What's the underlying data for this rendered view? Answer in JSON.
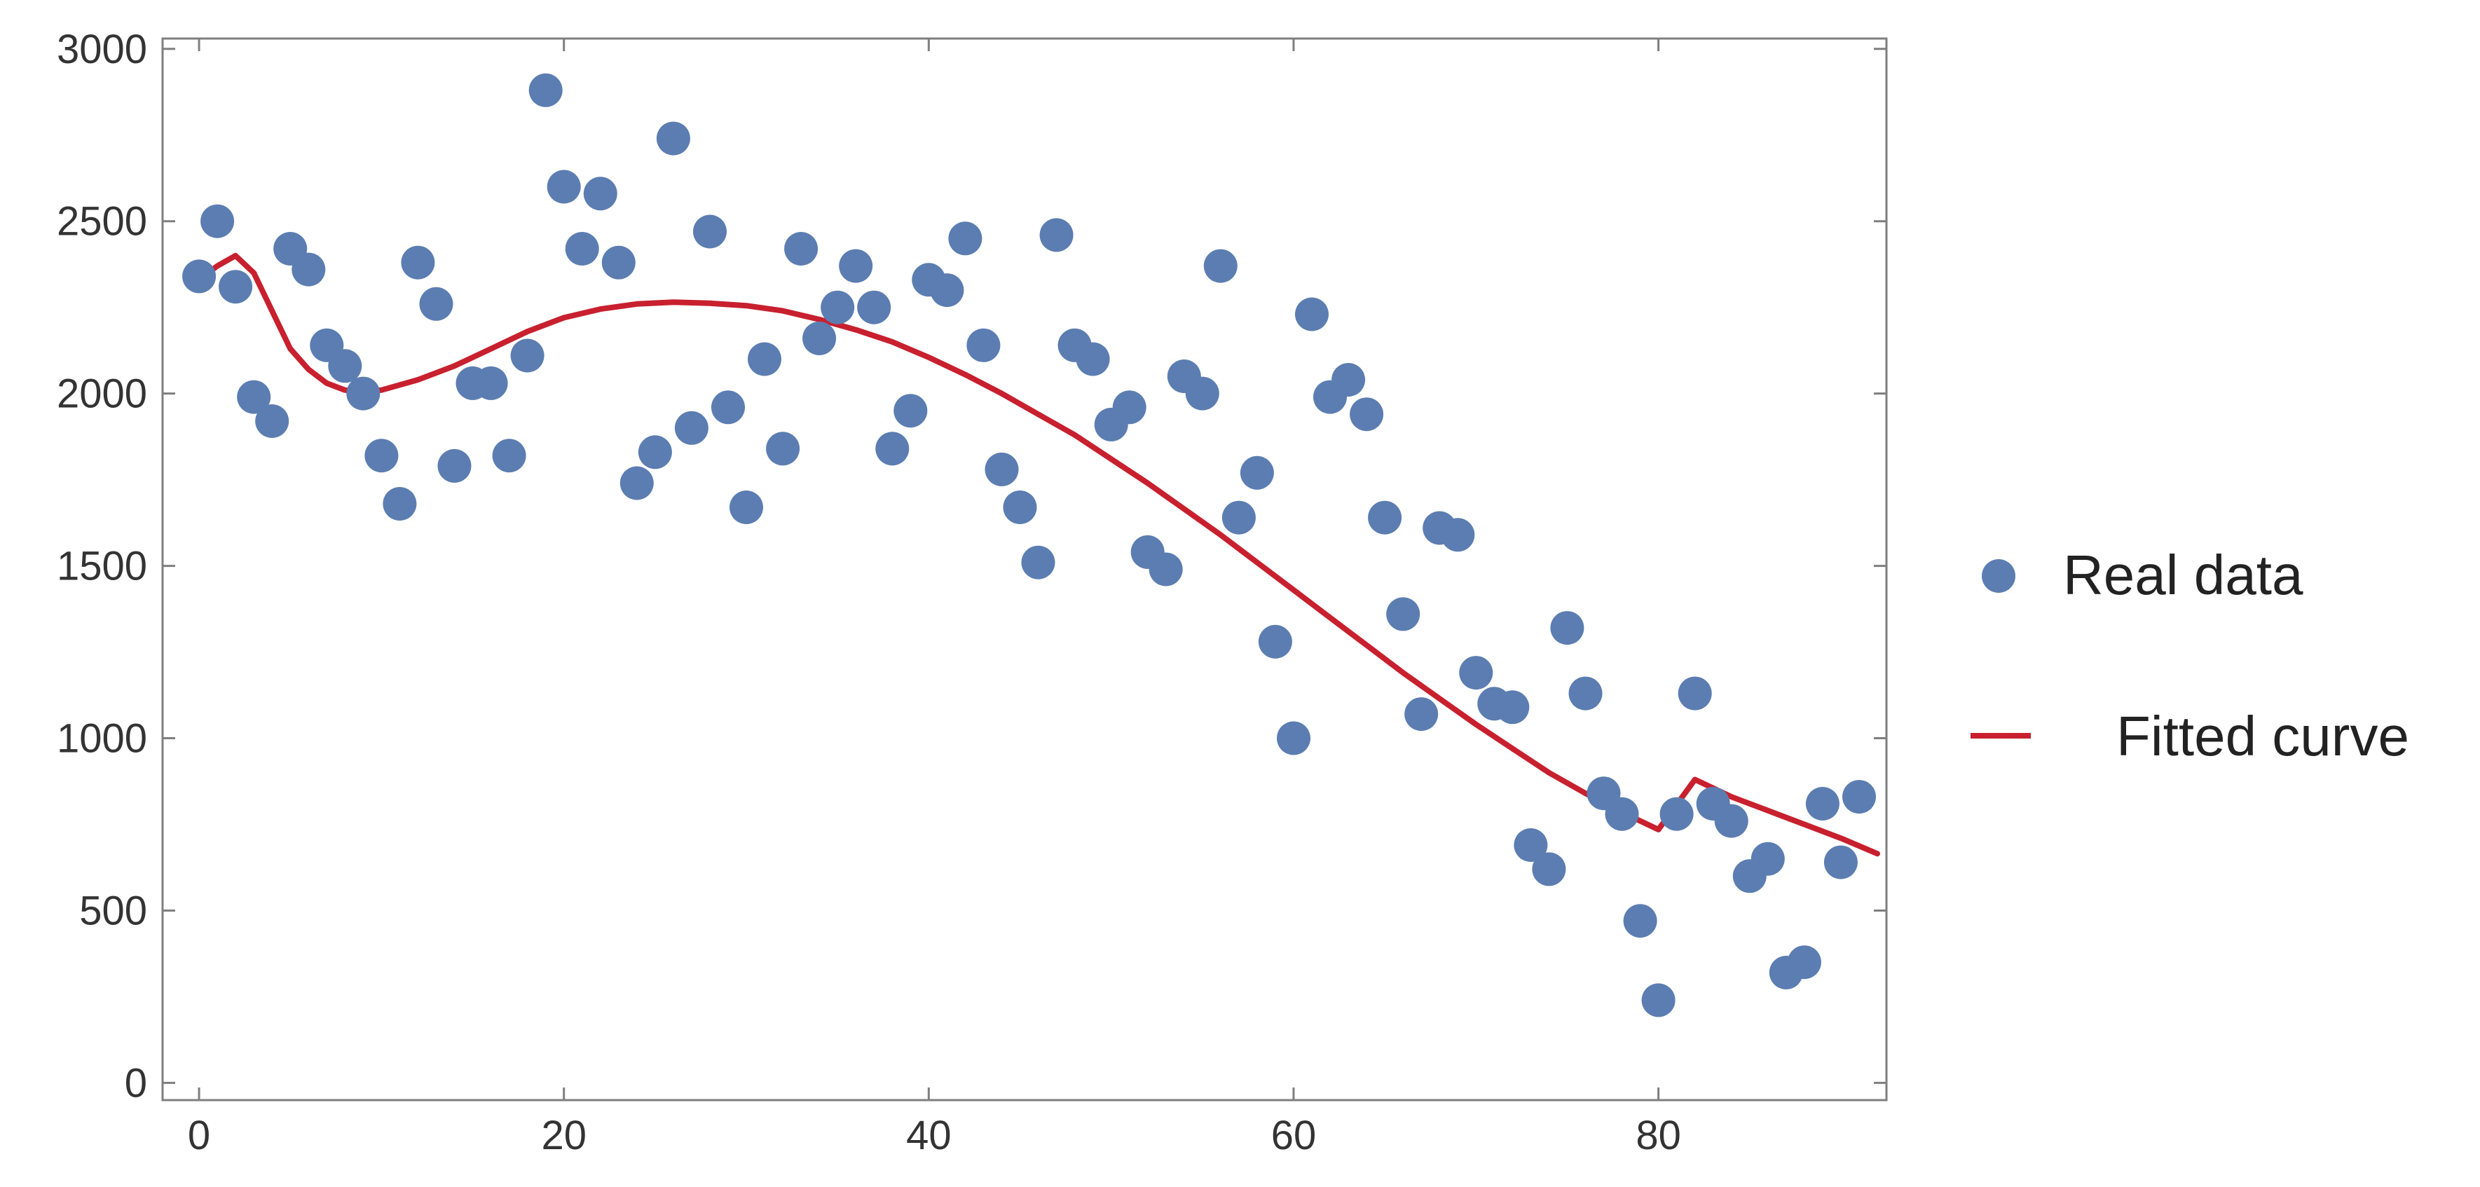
{
  "chart_data": {
    "type": "scatter",
    "title": "",
    "xlabel": "",
    "ylabel": "",
    "xlim": [
      -2,
      92.5
    ],
    "ylim": [
      -50,
      3030
    ],
    "x_ticks": [
      0,
      20,
      40,
      60,
      80
    ],
    "y_ticks": [
      0,
      500,
      1000,
      1500,
      2000,
      2500,
      3000
    ],
    "x_tick_labels": [
      "0",
      "20",
      "40",
      "60",
      "80"
    ],
    "y_tick_labels": [
      "0",
      "500",
      "1000",
      "1500",
      "2000",
      "2500",
      "3000"
    ],
    "grid": false,
    "legend_position": "right",
    "series": [
      {
        "name": "Real data",
        "kind": "points",
        "color": "#5B7DB1",
        "x": [
          0,
          1,
          2,
          3,
          4,
          5,
          6,
          7,
          8,
          9,
          10,
          11,
          12,
          13,
          14,
          15,
          16,
          17,
          18,
          19,
          20,
          21,
          22,
          23,
          24,
          25,
          26,
          27,
          28,
          29,
          30,
          31,
          32,
          33,
          34,
          35,
          36,
          37,
          38,
          39,
          40,
          41,
          42,
          43,
          44,
          45,
          46,
          47,
          48,
          49,
          50,
          51,
          52,
          53,
          54,
          55,
          56,
          57,
          58,
          59,
          60,
          61,
          62,
          63,
          64,
          65,
          66,
          67,
          68,
          69,
          70,
          71,
          72,
          73,
          74,
          75,
          76,
          77,
          78,
          79,
          80,
          81,
          82,
          83,
          84,
          85,
          86,
          87,
          88,
          89,
          90,
          91
        ],
        "y": [
          2340,
          2500,
          2310,
          1990,
          1920,
          2420,
          2360,
          2140,
          2080,
          2000,
          1820,
          1680,
          2380,
          2260,
          1790,
          2030,
          2030,
          1820,
          2110,
          2880,
          2600,
          2420,
          2580,
          2380,
          1740,
          1830,
          2740,
          1900,
          2470,
          1960,
          1670,
          2100,
          1840,
          2420,
          2160,
          2250,
          2370,
          2250,
          1840,
          1950,
          2330,
          2300,
          2450,
          2140,
          1780,
          1670,
          1510,
          2460,
          2140,
          2100,
          1910,
          1960,
          1540,
          1490,
          2050,
          2000,
          2370,
          1640,
          1770,
          1280,
          1000,
          2230,
          1990,
          2040,
          1940,
          1640,
          1360,
          1070,
          1610,
          1590,
          1190,
          1100,
          1090,
          690,
          620,
          1320,
          1130,
          840,
          780,
          470,
          240,
          780,
          1130,
          810,
          760,
          600,
          650,
          320,
          350,
          810,
          640,
          830
        ]
      },
      {
        "name": "Fitted curve",
        "kind": "line",
        "color": "#C8202E",
        "x": [
          0,
          1,
          2,
          3,
          4,
          5,
          6,
          7,
          8,
          9,
          10,
          12,
          14,
          16,
          18,
          20,
          22,
          24,
          26,
          28,
          30,
          32,
          34,
          36,
          38,
          40,
          42,
          44,
          46,
          48,
          50,
          52,
          54,
          56,
          58,
          60,
          62,
          64,
          66,
          68,
          70,
          72,
          74,
          76,
          78,
          80,
          82,
          84,
          86,
          88,
          90,
          92
        ],
        "y": [
          2330,
          2370,
          2400,
          2350,
          2240,
          2130,
          2070,
          2030,
          2010,
          2005,
          2010,
          2040,
          2080,
          2130,
          2180,
          2220,
          2245,
          2260,
          2265,
          2262,
          2255,
          2240,
          2215,
          2185,
          2150,
          2105,
          2055,
          2000,
          1940,
          1880,
          1810,
          1740,
          1665,
          1590,
          1510,
          1430,
          1350,
          1270,
          1190,
          1115,
          1040,
          970,
          900,
          840,
          785,
          735,
          880,
          830,
          790,
          750,
          710,
          665
        ]
      }
    ]
  }
}
